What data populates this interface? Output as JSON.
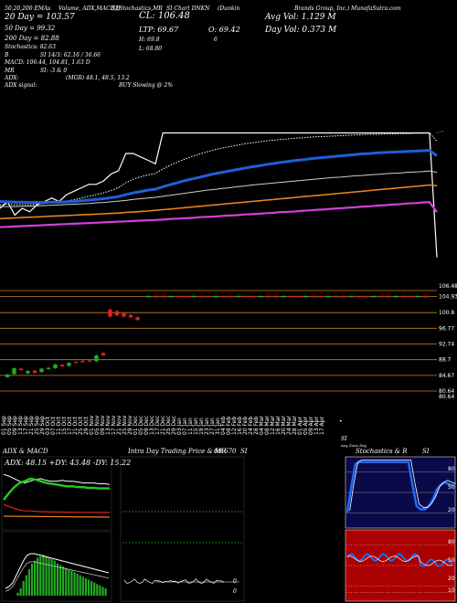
{
  "header": {
    "top_labels": [
      "50,20,200 EMAs",
      "Volume, ADX,MACD,B",
      "SI,Stochastics,MR",
      "SI Chart DNKN",
      "(Dunkin",
      "Brands Group, Inc.) MunafaSutra.com"
    ],
    "ema20": "20  Day = 103.57",
    "ema50": "50  Day = 99.32",
    "ema200": "200  Day = 82.88",
    "stochastics": "Stochastics: 82.63",
    "b_line": "B",
    "si_line": "SI 14/3: 62.16 / 36.66",
    "macd_line": "MACD: 106.44, 104.81, 1.63 D",
    "mr_line": "MR",
    "si_line2": "SI: -3 & 0",
    "adx_line": "ADX:",
    "mgr_line": "(MGR) 48.1, 48.5, 13.2",
    "adx_signal": "ADX  signal:",
    "buy_signal": "BUY Slowing @ 2%",
    "cl": "CL: 106.48",
    "ltp": "LTP: 69.67",
    "o": "O: 69.42",
    "h": "H: 69.8",
    "six": "6",
    "l": "L: 68.80",
    "avg_vol": "Avg Vol: 1.129 M",
    "day_vol": "Day Vol: 0.373 M"
  },
  "colors": {
    "ema20": "#ffffff",
    "ema50": "#1f5fd6",
    "ema100": "#cfcfcf",
    "ema_orange": "#e8841f",
    "ema200": "#d040d8",
    "up": "#22aa22",
    "down": "#dd2222",
    "grid_orange": "#c8821e",
    "adx_green": "#22cc22",
    "stoch_blue": "#1f6fff",
    "stoch_bg": "#0a0a4a",
    "si_bg": "#aa0000"
  },
  "chart_data": [
    {
      "type": "line",
      "name": "ema-price-panel",
      "x": [
        0,
        1,
        2,
        3,
        4,
        5,
        6,
        7,
        8,
        9,
        10,
        11,
        12,
        13,
        14,
        15,
        16,
        17,
        18,
        19,
        20,
        21,
        22,
        23,
        24,
        25,
        26,
        27,
        28,
        29,
        30,
        31,
        32,
        33,
        34,
        35,
        36,
        37,
        38,
        39,
        40,
        41,
        42,
        43,
        44,
        45,
        46,
        47,
        48,
        49,
        50,
        51,
        52,
        53,
        54,
        55,
        56,
        57,
        58,
        59
      ],
      "series": [
        {
          "key": "price",
          "values": [
            84,
            86,
            82,
            84,
            83,
            85,
            86,
            87,
            86,
            88,
            89,
            90,
            91,
            91,
            92,
            94,
            95,
            100,
            100,
            99,
            98,
            97,
            106,
            106,
            106,
            106,
            106,
            106,
            106,
            106,
            106,
            106,
            106,
            106,
            106,
            106,
            106,
            106,
            106,
            106,
            106,
            106,
            106,
            106,
            106,
            106,
            106,
            106,
            106,
            106,
            106,
            106,
            106,
            106,
            106,
            106,
            106,
            106,
            106,
            69.67
          ]
        },
        {
          "key": "ema20",
          "values": [
            85,
            85.2,
            85,
            85.1,
            85,
            85.2,
            85.4,
            85.7,
            85.8,
            86.1,
            86.5,
            87,
            87.5,
            88,
            88.5,
            89.2,
            90,
            91.5,
            92.5,
            93.2,
            93.8,
            94.2,
            95.5,
            96.6,
            97.5,
            98.4,
            99.2,
            99.9,
            100.5,
            101.1,
            101.6,
            102,
            102.4,
            102.8,
            103.1,
            103.4,
            103.7,
            103.9,
            104.1,
            104.3,
            104.5,
            104.6,
            104.8,
            104.9,
            105,
            105.1,
            105.2,
            105.3,
            105.4,
            105.5,
            105.6,
            105.6,
            105.7,
            105.7,
            105.8,
            105.8,
            105.9,
            105.9,
            106,
            103.57
          ]
        },
        {
          "key": "ema50",
          "values": [
            86,
            85.9,
            85.8,
            85.8,
            85.7,
            85.7,
            85.7,
            85.8,
            85.8,
            85.9,
            86,
            86.2,
            86.4,
            86.6,
            86.8,
            87.1,
            87.4,
            88,
            88.5,
            88.9,
            89.3,
            89.6,
            90.3,
            90.9,
            91.5,
            92.1,
            92.6,
            93.1,
            93.6,
            94.1,
            94.5,
            94.9,
            95.3,
            95.7,
            96.1,
            96.4,
            96.8,
            97.1,
            97.4,
            97.7,
            98,
            98.2,
            98.5,
            98.7,
            98.9,
            99.1,
            99.3,
            99.5,
            99.7,
            99.9,
            100,
            100.2,
            100.3,
            100.4,
            100.5,
            100.6,
            100.7,
            100.8,
            100.9,
            99.32
          ]
        },
        {
          "key": "ema100",
          "values": [
            84.5,
            84.5,
            84.5,
            84.6,
            84.6,
            84.7,
            84.8,
            84.9,
            85,
            85.1,
            85.2,
            85.3,
            85.4,
            85.6,
            85.7,
            85.9,
            86.1,
            86.3,
            86.6,
            86.8,
            87,
            87.2,
            87.5,
            87.8,
            88.1,
            88.4,
            88.7,
            89,
            89.3,
            89.5,
            89.8,
            90,
            90.3,
            90.5,
            90.8,
            91,
            91.2,
            91.4,
            91.6,
            91.8,
            92,
            92.2,
            92.4,
            92.6,
            92.8,
            93,
            93.1,
            93.3,
            93.5,
            93.6,
            93.8,
            93.9,
            94.1,
            94.2,
            94.3,
            94.5,
            94.6,
            94.7,
            94.9,
            94.5
          ]
        },
        {
          "key": "ema_orange",
          "values": [
            81,
            81.1,
            81.2,
            81.3,
            81.4,
            81.5,
            81.6,
            81.7,
            81.8,
            81.9,
            82,
            82.1,
            82.2,
            82.3,
            82.4,
            82.5,
            82.6,
            82.8,
            82.9,
            83.1,
            83.2,
            83.4,
            83.6,
            83.8,
            84,
            84.2,
            84.4,
            84.6,
            84.8,
            85,
            85.2,
            85.4,
            85.6,
            85.8,
            86,
            86.2,
            86.4,
            86.6,
            86.8,
            87,
            87.2,
            87.4,
            87.6,
            87.8,
            88,
            88.2,
            88.4,
            88.6,
            88.8,
            89,
            89.2,
            89.4,
            89.6,
            89.8,
            90,
            90.2,
            90.4,
            90.6,
            90.8,
            90.6
          ]
        },
        {
          "key": "ema200",
          "values": [
            78.5,
            78.6,
            78.7,
            78.8,
            78.9,
            79,
            79.1,
            79.2,
            79.3,
            79.4,
            79.5,
            79.6,
            79.7,
            79.8,
            79.9,
            80,
            80.1,
            80.2,
            80.3,
            80.4,
            80.5,
            80.6,
            80.7,
            80.9,
            81,
            81.1,
            81.2,
            81.4,
            81.5,
            81.6,
            81.8,
            81.9,
            82,
            82.2,
            82.3,
            82.4,
            82.6,
            82.7,
            82.9,
            83,
            83.1,
            83.3,
            83.4,
            83.6,
            83.7,
            83.9,
            84,
            84.2,
            84.3,
            84.5,
            84.6,
            84.8,
            84.9,
            85.1,
            85.2,
            85.4,
            85.5,
            85.7,
            85.8,
            82.88
          ]
        }
      ]
    },
    {
      "type": "bar",
      "name": "candle-panel",
      "ylabels": [
        "106.48",
        "104.93",
        "100.8",
        "96.77",
        "92.74",
        "88.7",
        "84.67",
        "80.64",
        "80.64"
      ],
      "candles": [
        {
          "o": 84.2,
          "c": 84.9,
          "h": 85.1,
          "l": 84.0,
          "up": true
        },
        {
          "o": 85.0,
          "c": 86.5,
          "h": 86.7,
          "l": 84.8,
          "up": true
        },
        {
          "o": 86.4,
          "c": 86.0,
          "h": 86.7,
          "l": 85.8,
          "up": false
        },
        {
          "o": 85.2,
          "c": 85.8,
          "h": 86.0,
          "l": 85.0,
          "up": true
        },
        {
          "o": 85.9,
          "c": 85.3,
          "h": 86.1,
          "l": 85.1,
          "up": false
        },
        {
          "o": 85.5,
          "c": 86.4,
          "h": 86.6,
          "l": 85.3,
          "up": true
        },
        {
          "o": 86.3,
          "c": 86.6,
          "h": 86.8,
          "l": 86.0,
          "up": true
        },
        {
          "o": 86.5,
          "c": 87.5,
          "h": 87.7,
          "l": 86.3,
          "up": true
        },
        {
          "o": 87.4,
          "c": 87.0,
          "h": 87.6,
          "l": 86.8,
          "up": false
        },
        {
          "o": 87.1,
          "c": 87.9,
          "h": 88.1,
          "l": 86.9,
          "up": true
        },
        {
          "o": 88.0,
          "c": 88.1,
          "h": 88.4,
          "l": 87.8,
          "up": false
        },
        {
          "o": 88.1,
          "c": 88.4,
          "h": 88.6,
          "l": 87.9,
          "up": false
        },
        {
          "o": 88.3,
          "c": 88.5,
          "h": 88.7,
          "l": 88.1,
          "up": false
        },
        {
          "o": 88.3,
          "c": 89.8,
          "h": 90.0,
          "l": 88.1,
          "up": true
        },
        {
          "o": 89.8,
          "c": 90.4,
          "h": 90.8,
          "l": 89.6,
          "up": false
        },
        {
          "o": 99.8,
          "c": 101.6,
          "h": 101.9,
          "l": 99.5,
          "up": false
        },
        {
          "o": 101.2,
          "c": 100.1,
          "h": 101.5,
          "l": 99.9,
          "up": false
        },
        {
          "o": 100.6,
          "c": 99.8,
          "h": 100.9,
          "l": 99.5,
          "up": false
        },
        {
          "o": 100.2,
          "c": 99.6,
          "h": 100.5,
          "l": 99.3,
          "up": false
        },
        {
          "o": 99.6,
          "c": 98.9,
          "h": 99.9,
          "l": 98.6,
          "up": false
        }
      ],
      "flat_ticks_value": 104.93,
      "flat_ticks_count": 38
    },
    {
      "type": "table",
      "name": "x-axis-dates",
      "tick_labels": [
        "01 Sep",
        "05 Sep",
        "09 Sep",
        "13 Sep",
        "17 Sep",
        "21 Sep",
        "25 Sep",
        "29 Sep",
        "03 Oct",
        "07 Oct",
        "11 Oct",
        "15 Oct",
        "17 Oct",
        "21 Oct",
        "25 Oct",
        "29 Oct",
        "01 Nov",
        "05 Nov",
        "09 Nov",
        "13 Nov",
        "17 Nov",
        "21 Nov",
        "25 Nov",
        "29 Nov",
        "01 Dec",
        "05 Dec",
        "09 Dec",
        "13 Dec",
        "17 Dec",
        "21 Dec",
        "25 Dec",
        "29 Dec",
        "03 Jan",
        "07 Jan",
        "11 Jan",
        "15 Jan",
        "19 Jan",
        "23 Jan",
        "27 Jan",
        "31 Jan",
        "04 Feb",
        "08 Feb",
        "12 Feb",
        "16 Feb",
        "20 Feb",
        "24 Feb",
        "28 Feb",
        "04 Mar",
        "08 Mar",
        "12 Mar",
        "16 Mar",
        "20 Mar",
        "24 Mar",
        "28 Mar",
        "01 Apr",
        "05 Apr",
        "09 Apr",
        "13 Apr",
        "17 Apr"
      ]
    }
  ],
  "panels": {
    "adx_title": "ADX  & MACD",
    "adx_values": "ADX: 48.15 +DY: 43.48 -DY: 15.22",
    "intra_title": "Intra Day Trading Price  & MR",
    "intra_value": "69.670",
    "intra_si": "SI",
    "intra_zero": "0",
    "intra_zero2": "0",
    "stoch_title": "Stochastics & R",
    "stoch_si": "SI",
    "stoch_levels": [
      "80",
      "50",
      "20"
    ],
    "si_levels": [
      "80",
      "50",
      "20",
      "10"
    ],
    "si_caption": "SI",
    "si_sub": "Avg Zone  Day",
    "intra_levels_note": ""
  },
  "adx_series": {
    "adx": [
      60,
      58,
      55,
      52,
      50,
      52,
      54,
      55,
      53,
      52,
      52,
      53,
      52,
      52,
      51,
      50,
      50,
      50,
      49,
      49,
      48.15
    ],
    "pdi": [
      30,
      38,
      45,
      50,
      52,
      55,
      54,
      52,
      50,
      49,
      48,
      47,
      46,
      46,
      45,
      45,
      44,
      44,
      43.5,
      43.5,
      43.48
    ],
    "mdi": [
      25,
      22,
      20,
      18,
      17,
      17,
      16.5,
      16,
      16,
      15.8,
      15.7,
      15.6,
      15.5,
      15.4,
      15.4,
      15.3,
      15.3,
      15.3,
      15.2,
      15.2,
      15.22
    ]
  },
  "stoch_series": [
    20,
    60,
    92,
    95,
    95,
    95,
    95,
    95,
    95,
    95,
    95,
    95,
    95,
    95,
    95,
    95,
    60,
    30,
    25,
    25,
    30,
    40,
    55,
    62,
    65,
    62,
    60
  ]
}
